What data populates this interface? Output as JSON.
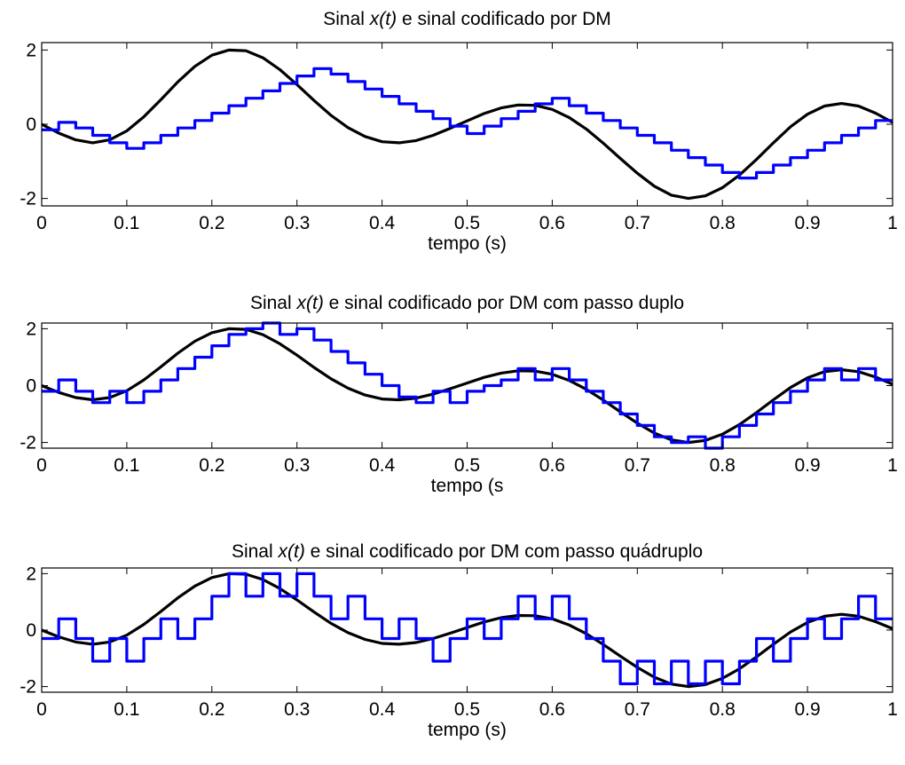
{
  "chart_data": [
    {
      "type": "line",
      "title_prefix": "Sinal ",
      "title_var": "x(",
      "title_var_t": "t",
      "title_var_close": ")",
      "title_suffix": " e sinal codificado por DM",
      "xlabel": "tempo (s)",
      "ylabel": "",
      "xlim": [
        0,
        1
      ],
      "ylim": [
        -2.2,
        2.2
      ],
      "xticks": [
        "0",
        "0.1",
        "0.2",
        "0.3",
        "0.4",
        "0.5",
        "0.6",
        "0.7",
        "0.8",
        "0.9",
        "1"
      ],
      "yticks": [
        "-2",
        "0",
        "2"
      ],
      "series": [
        {
          "color": "#000000",
          "kind": "smooth",
          "x": [
            0,
            0.02,
            0.04,
            0.06,
            0.08,
            0.1,
            0.12,
            0.14,
            0.16,
            0.18,
            0.2,
            0.22,
            0.24,
            0.26,
            0.28,
            0.3,
            0.32,
            0.34,
            0.36,
            0.38,
            0.4,
            0.42,
            0.44,
            0.46,
            0.48,
            0.5,
            0.52,
            0.54,
            0.56,
            0.58,
            0.6,
            0.62,
            0.64,
            0.66,
            0.68,
            0.7,
            0.72,
            0.74,
            0.76,
            0.78,
            0.8,
            0.82,
            0.84,
            0.86,
            0.88,
            0.9,
            0.92,
            0.94,
            0.96,
            0.98,
            1
          ],
          "y": [
            0,
            -0.24,
            -0.42,
            -0.5,
            -0.42,
            -0.18,
            0.2,
            0.66,
            1.14,
            1.56,
            1.86,
            2.0,
            1.98,
            1.79,
            1.47,
            1.07,
            0.64,
            0.24,
            -0.09,
            -0.33,
            -0.47,
            -0.5,
            -0.44,
            -0.3,
            -0.11,
            0.09,
            0.29,
            0.44,
            0.52,
            0.51,
            0.4,
            0.18,
            -0.13,
            -0.51,
            -0.92,
            -1.32,
            -1.67,
            -1.91,
            -2.0,
            -1.93,
            -1.71,
            -1.37,
            -0.95,
            -0.5,
            -0.07,
            0.27,
            0.49,
            0.56,
            0.49,
            0.3,
            0.05
          ]
        },
        {
          "color": "#0000ff",
          "kind": "step",
          "x": [
            0,
            0.02,
            0.04,
            0.06,
            0.08,
            0.1,
            0.12,
            0.14,
            0.16,
            0.18,
            0.2,
            0.22,
            0.24,
            0.26,
            0.28,
            0.3,
            0.32,
            0.34,
            0.36,
            0.38,
            0.4,
            0.42,
            0.44,
            0.46,
            0.48,
            0.5,
            0.52,
            0.54,
            0.56,
            0.58,
            0.6,
            0.62,
            0.64,
            0.66,
            0.68,
            0.7,
            0.72,
            0.74,
            0.76,
            0.78,
            0.8,
            0.82,
            0.84,
            0.86,
            0.88,
            0.9,
            0.92,
            0.94,
            0.96,
            0.98
          ],
          "y": [
            -0.15,
            0.05,
            -0.1,
            -0.3,
            -0.5,
            -0.65,
            -0.5,
            -0.3,
            -0.1,
            0.1,
            0.3,
            0.5,
            0.7,
            0.9,
            1.1,
            1.3,
            1.5,
            1.35,
            1.15,
            0.95,
            0.75,
            0.55,
            0.35,
            0.15,
            -0.05,
            -0.25,
            -0.05,
            0.15,
            0.35,
            0.55,
            0.7,
            0.5,
            0.3,
            0.1,
            -0.1,
            -0.3,
            -0.5,
            -0.7,
            -0.9,
            -1.1,
            -1.3,
            -1.45,
            -1.3,
            -1.1,
            -0.9,
            -0.7,
            -0.5,
            -0.3,
            -0.1,
            0.1
          ]
        }
      ]
    },
    {
      "type": "line",
      "title_prefix": "Sinal ",
      "title_var": "x(",
      "title_var_t": "t",
      "title_var_close": ")",
      "title_suffix": " e sinal codificado por DM com passo duplo",
      "xlabel": "tempo (s",
      "ylabel": "",
      "xlim": [
        0,
        1
      ],
      "ylim": [
        -2.2,
        2.2
      ],
      "xticks": [
        "0",
        "0.1",
        "0.2",
        "0.3",
        "0.4",
        "0.5",
        "0.6",
        "0.7",
        "0.8",
        "0.9",
        "1"
      ],
      "yticks": [
        "-2",
        "0",
        "2"
      ],
      "series": [
        {
          "color": "#000000",
          "kind": "smooth",
          "x": [
            0,
            0.02,
            0.04,
            0.06,
            0.08,
            0.1,
            0.12,
            0.14,
            0.16,
            0.18,
            0.2,
            0.22,
            0.24,
            0.26,
            0.28,
            0.3,
            0.32,
            0.34,
            0.36,
            0.38,
            0.4,
            0.42,
            0.44,
            0.46,
            0.48,
            0.5,
            0.52,
            0.54,
            0.56,
            0.58,
            0.6,
            0.62,
            0.64,
            0.66,
            0.68,
            0.7,
            0.72,
            0.74,
            0.76,
            0.78,
            0.8,
            0.82,
            0.84,
            0.86,
            0.88,
            0.9,
            0.92,
            0.94,
            0.96,
            0.98,
            1
          ],
          "y": [
            0,
            -0.24,
            -0.42,
            -0.5,
            -0.42,
            -0.18,
            0.2,
            0.66,
            1.14,
            1.56,
            1.86,
            2.0,
            1.98,
            1.79,
            1.47,
            1.07,
            0.64,
            0.24,
            -0.09,
            -0.33,
            -0.47,
            -0.5,
            -0.44,
            -0.3,
            -0.11,
            0.09,
            0.29,
            0.44,
            0.52,
            0.51,
            0.4,
            0.18,
            -0.13,
            -0.51,
            -0.92,
            -1.32,
            -1.67,
            -1.91,
            -2.0,
            -1.93,
            -1.71,
            -1.37,
            -0.95,
            -0.5,
            -0.07,
            0.27,
            0.49,
            0.56,
            0.49,
            0.3,
            0.05
          ]
        },
        {
          "color": "#0000ff",
          "kind": "step",
          "x": [
            0,
            0.02,
            0.04,
            0.06,
            0.08,
            0.1,
            0.12,
            0.14,
            0.16,
            0.18,
            0.2,
            0.22,
            0.24,
            0.26,
            0.28,
            0.3,
            0.32,
            0.34,
            0.36,
            0.38,
            0.4,
            0.42,
            0.44,
            0.46,
            0.48,
            0.5,
            0.52,
            0.54,
            0.56,
            0.58,
            0.6,
            0.62,
            0.64,
            0.66,
            0.68,
            0.7,
            0.72,
            0.74,
            0.76,
            0.78,
            0.8,
            0.82,
            0.84,
            0.86,
            0.88,
            0.9,
            0.92,
            0.94,
            0.96,
            0.98
          ],
          "y": [
            -0.2,
            0.2,
            -0.2,
            -0.6,
            -0.2,
            -0.6,
            -0.2,
            0.2,
            0.6,
            1.0,
            1.4,
            1.8,
            2.0,
            2.2,
            1.8,
            2.0,
            1.6,
            1.2,
            0.8,
            0.4,
            0.0,
            -0.4,
            -0.6,
            -0.2,
            -0.6,
            -0.2,
            0.0,
            0.2,
            0.6,
            0.2,
            0.6,
            0.2,
            -0.2,
            -0.6,
            -1.0,
            -1.4,
            -1.8,
            -2.0,
            -1.8,
            -2.2,
            -1.8,
            -1.4,
            -1.0,
            -0.6,
            -0.2,
            0.2,
            0.6,
            0.2,
            0.6,
            0.2
          ]
        }
      ]
    },
    {
      "type": "line",
      "title_prefix": "Sinal ",
      "title_var": "x(",
      "title_var_t": "t",
      "title_var_close": ")",
      "title_suffix": " e sinal codificado por DM com passo quádruplo",
      "xlabel": "tempo (s)",
      "ylabel": "",
      "xlim": [
        0,
        1
      ],
      "ylim": [
        -2.2,
        2.2
      ],
      "xticks": [
        "0",
        "0.1",
        "0.2",
        "0.3",
        "0.4",
        "0.5",
        "0.6",
        "0.7",
        "0.8",
        "0.9",
        "1"
      ],
      "yticks": [
        "-2",
        "0",
        "2"
      ],
      "series": [
        {
          "color": "#000000",
          "kind": "smooth",
          "x": [
            0,
            0.02,
            0.04,
            0.06,
            0.08,
            0.1,
            0.12,
            0.14,
            0.16,
            0.18,
            0.2,
            0.22,
            0.24,
            0.26,
            0.28,
            0.3,
            0.32,
            0.34,
            0.36,
            0.38,
            0.4,
            0.42,
            0.44,
            0.46,
            0.48,
            0.5,
            0.52,
            0.54,
            0.56,
            0.58,
            0.6,
            0.62,
            0.64,
            0.66,
            0.68,
            0.7,
            0.72,
            0.74,
            0.76,
            0.78,
            0.8,
            0.82,
            0.84,
            0.86,
            0.88,
            0.9,
            0.92,
            0.94,
            0.96,
            0.98,
            1
          ],
          "y": [
            0,
            -0.24,
            -0.42,
            -0.5,
            -0.42,
            -0.18,
            0.2,
            0.66,
            1.14,
            1.56,
            1.86,
            2.0,
            1.98,
            1.79,
            1.47,
            1.07,
            0.64,
            0.24,
            -0.09,
            -0.33,
            -0.47,
            -0.5,
            -0.44,
            -0.3,
            -0.11,
            0.09,
            0.29,
            0.44,
            0.52,
            0.51,
            0.4,
            0.18,
            -0.13,
            -0.51,
            -0.92,
            -1.32,
            -1.67,
            -1.91,
            -2.0,
            -1.93,
            -1.71,
            -1.37,
            -0.95,
            -0.5,
            -0.07,
            0.27,
            0.49,
            0.56,
            0.49,
            0.3,
            0.05
          ]
        },
        {
          "color": "#0000ff",
          "kind": "step",
          "x": [
            0,
            0.02,
            0.04,
            0.06,
            0.08,
            0.1,
            0.12,
            0.14,
            0.16,
            0.18,
            0.2,
            0.22,
            0.24,
            0.26,
            0.28,
            0.3,
            0.32,
            0.34,
            0.36,
            0.38,
            0.4,
            0.42,
            0.44,
            0.46,
            0.48,
            0.5,
            0.52,
            0.54,
            0.56,
            0.58,
            0.6,
            0.62,
            0.64,
            0.66,
            0.68,
            0.7,
            0.72,
            0.74,
            0.76,
            0.78,
            0.8,
            0.82,
            0.84,
            0.86,
            0.88,
            0.9,
            0.92,
            0.94,
            0.96,
            0.98
          ],
          "y": [
            -0.3,
            0.4,
            -0.3,
            -1.1,
            -0.3,
            -1.1,
            -0.3,
            0.4,
            -0.3,
            0.4,
            1.2,
            2.0,
            1.2,
            2.0,
            1.2,
            2.0,
            1.2,
            0.4,
            1.2,
            0.4,
            -0.3,
            0.4,
            -0.3,
            -1.1,
            -0.3,
            0.4,
            -0.3,
            0.4,
            1.2,
            0.4,
            1.2,
            0.4,
            -0.3,
            -1.1,
            -1.9,
            -1.1,
            -1.9,
            -1.1,
            -1.9,
            -1.1,
            -1.9,
            -1.1,
            -0.3,
            -1.1,
            -0.3,
            0.4,
            -0.3,
            0.4,
            1.2,
            0.4
          ]
        }
      ]
    }
  ]
}
